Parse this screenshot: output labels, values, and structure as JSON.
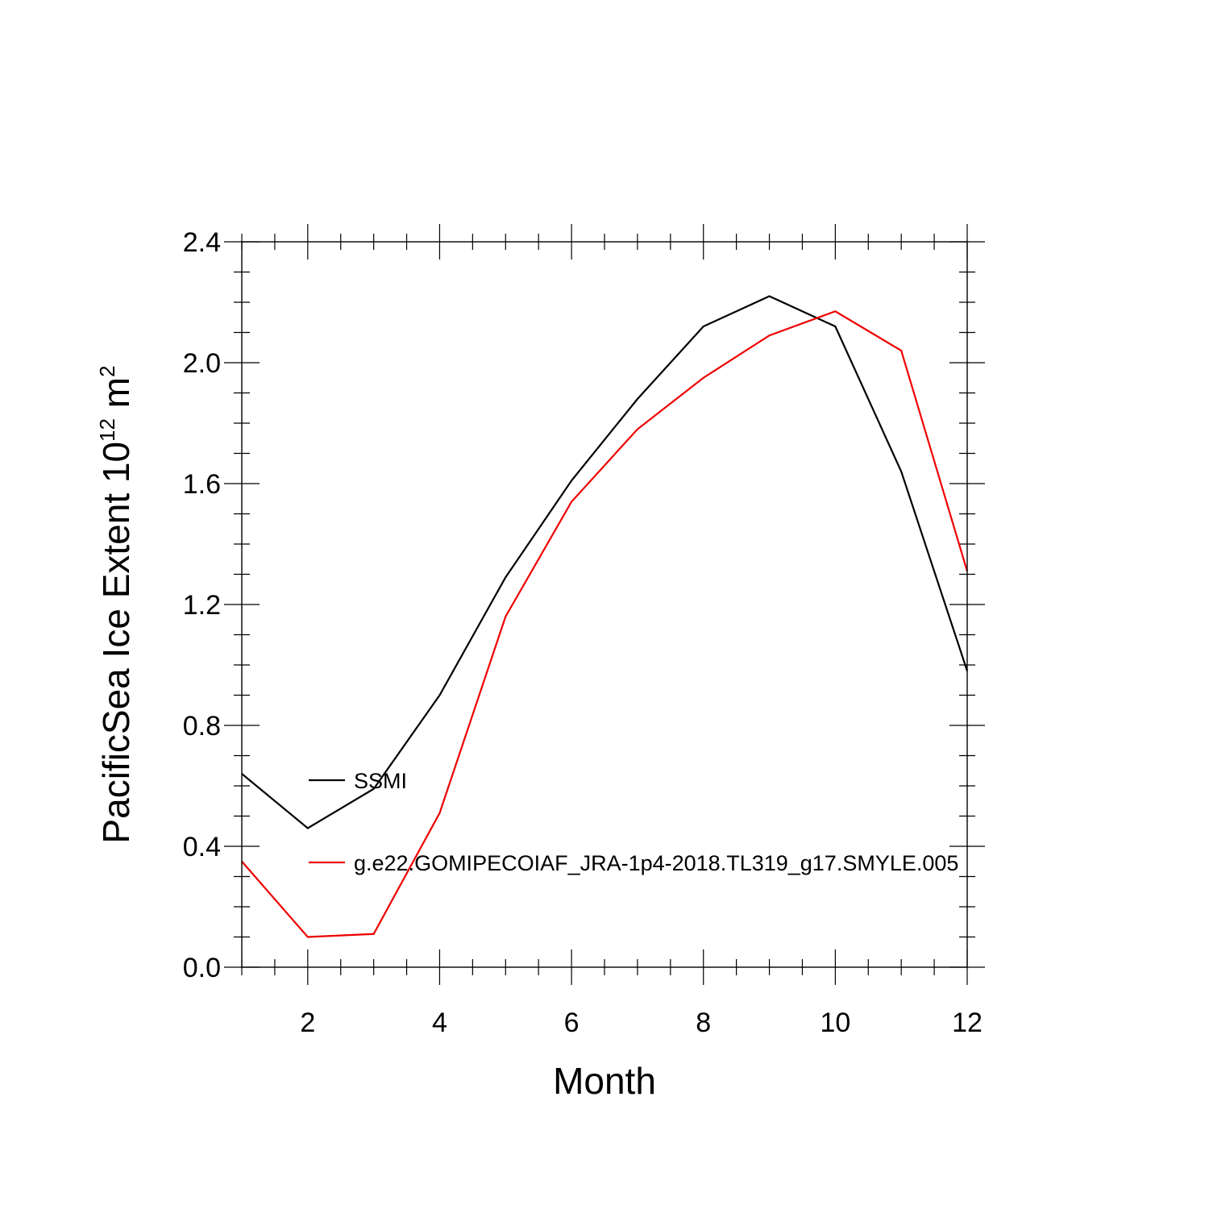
{
  "chart_data": {
    "type": "line",
    "title": "",
    "xlabel": "Month",
    "ylabel": {
      "text": "PacificSea Ice Extent 10",
      "exponent": "12",
      "unit": " m",
      "unit_exponent": "2"
    },
    "xlim": [
      1,
      12
    ],
    "ylim": [
      0.0,
      2.4
    ],
    "x_major_ticks": [
      2,
      4,
      6,
      8,
      10,
      12
    ],
    "x_tick_labels": [
      "2",
      "4",
      "6",
      "8",
      "10",
      "12"
    ],
    "y_major_ticks": [
      0.0,
      0.4,
      0.8,
      1.2,
      1.6,
      2.0,
      2.4
    ],
    "y_tick_labels": [
      "0.0",
      "0.4",
      "0.8",
      "1.2",
      "1.6",
      "2.0",
      "2.4"
    ],
    "x": [
      1,
      2,
      3,
      4,
      5,
      6,
      7,
      8,
      9,
      10,
      11,
      12
    ],
    "series": [
      {
        "name": "SSMI",
        "color": "#000000",
        "values": [
          0.64,
          0.46,
          0.59,
          0.9,
          1.29,
          1.61,
          1.88,
          2.12,
          2.22,
          2.12,
          1.64,
          0.98
        ]
      },
      {
        "name": "g.e22.GOMIPECOIAF_JRA-1p4-2018.TL319_g17.SMYLE.005",
        "color": "#ee0000",
        "values": [
          0.35,
          0.1,
          0.11,
          0.51,
          1.16,
          1.54,
          1.78,
          1.95,
          2.09,
          2.17,
          2.04,
          1.31
        ]
      }
    ],
    "grid": false,
    "legend_position": "inside-left"
  }
}
